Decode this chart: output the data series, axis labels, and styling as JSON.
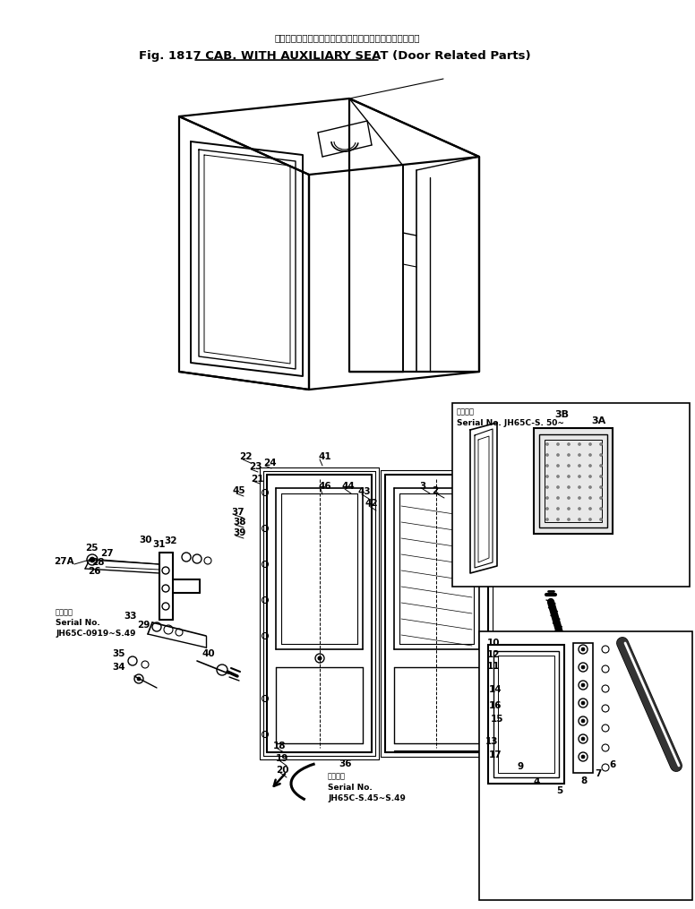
{
  "bg_color": "#ffffff",
  "text_color": "#000000",
  "line_color": "#000000",
  "title_jp": "キャブ、補　　助　　庚　　付（ドア　首　連　部　品）",
  "title_en": "Fig. 1817 CAB. WITH AUXILIARY SEAT (Door Related Parts)",
  "serial_top_jp": "適用号機",
  "serial_top_en": "Serial No. JH65C-S. 50~",
  "serial_mid_jp": "適用号機",
  "serial_mid_en1": "Serial No.",
  "serial_mid_en2": "JH65C-S.45~S.49",
  "serial_left_jp": "適用号機",
  "serial_left_en1": "Serial No.",
  "serial_left_en2": "JH65C-0919~S.49"
}
